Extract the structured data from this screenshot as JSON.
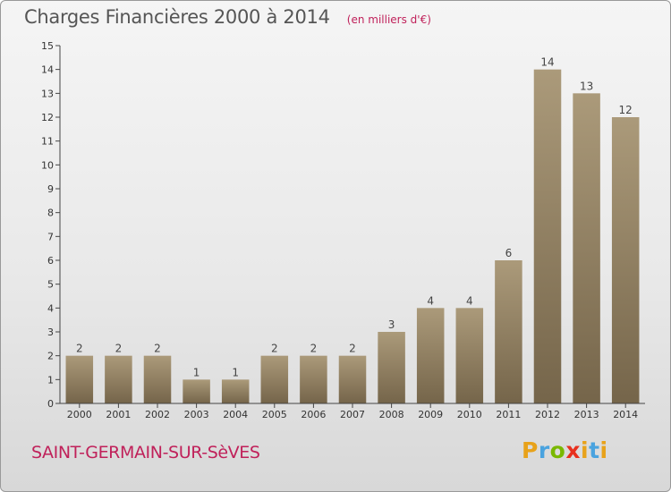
{
  "header": {
    "title": "Charges Financières 2000 à 2014",
    "unit": "(en milliers d'€)"
  },
  "footer": {
    "commune": "SAINT-GERMAIN-SUR-SèVES",
    "logo_letters": [
      "P",
      "r",
      "o",
      "x",
      "i",
      "t",
      "i"
    ],
    "logo_colors": [
      "#e8a21a",
      "#4aa3df",
      "#7ab800",
      "#e8301e",
      "#e8a21a",
      "#4aa3df",
      "#e8a21a"
    ]
  },
  "colors": {
    "bar_light": "#ab9a7a",
    "bar_dark": "#75654a",
    "accent": "#c0215a",
    "axis": "#444444"
  },
  "chart_data": {
    "type": "bar",
    "title": "Charges Financières 2000 à 2014",
    "subtitle": "(en milliers d'€)",
    "categories": [
      "2000",
      "2001",
      "2002",
      "2003",
      "2004",
      "2005",
      "2006",
      "2007",
      "2008",
      "2009",
      "2010",
      "2011",
      "2012",
      "2013",
      "2014"
    ],
    "values": [
      2,
      2,
      2,
      1,
      1,
      2,
      2,
      2,
      3,
      4,
      4,
      6,
      14,
      13,
      12
    ],
    "data_labels": [
      "2",
      "2",
      "2",
      "1",
      "1",
      "2",
      "2",
      "2",
      "3",
      "4",
      "4",
      "6",
      "14",
      "13",
      "12"
    ],
    "ylim": [
      0,
      15
    ],
    "yticks": [
      0,
      1,
      2,
      3,
      4,
      5,
      6,
      7,
      8,
      9,
      10,
      11,
      12,
      13,
      14,
      15
    ],
    "ytick_labels": [
      "0",
      "1",
      "2",
      "3",
      "4",
      "5",
      "6",
      "7",
      "8",
      "9",
      "10",
      "11",
      "12",
      "13",
      "14",
      "15"
    ],
    "grid": false,
    "legend": "none"
  }
}
